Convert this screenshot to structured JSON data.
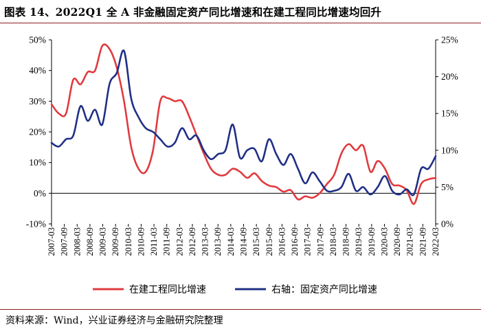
{
  "header": {
    "title": "图表 14、2022Q1 全 A 非金融固定资产同比增速和在建工程同比增速均回升"
  },
  "footer": {
    "source": "资料来源：Wind，兴业证券经济与金融研究院整理"
  },
  "chart_data": {
    "type": "line",
    "title": "图表 14、2022Q1 全 A 非金融固定资产同比增速和在建工程同比增速均回升",
    "left_axis": {
      "ylim": [
        -10,
        50
      ],
      "ticks": [
        "-10%",
        "0%",
        "10%",
        "20%",
        "30%",
        "40%",
        "50%"
      ]
    },
    "right_axis": {
      "ylim": [
        0,
        25
      ],
      "ticks": [
        "0%",
        "5%",
        "10%",
        "15%",
        "20%",
        "25%"
      ]
    },
    "x_tick_labels": [
      "2007-03",
      "2007-09",
      "2008-03",
      "2008-09",
      "2009-03",
      "2009-09",
      "2010-03",
      "2010-09",
      "2011-03",
      "2011-09",
      "2012-03",
      "2012-09",
      "2013-03",
      "2013-09",
      "2014-03",
      "2014-09",
      "2015-03",
      "2015-09",
      "2016-03",
      "2016-09",
      "2017-03",
      "2017-09",
      "2018-03",
      "2018-09",
      "2019-03",
      "2019-09",
      "2020-03",
      "2020-09",
      "2021-03",
      "2021-09",
      "2022-03"
    ],
    "grid": false,
    "legend_position": "bottom",
    "series": [
      {
        "name": "在建工程同比增速",
        "axis": "left",
        "color": "#e03a3e",
        "values": [
          29,
          26,
          26,
          37,
          35.5,
          39.5,
          40,
          48,
          47,
          41,
          30,
          15,
          8,
          7,
          14,
          30,
          31,
          30,
          30,
          25,
          19,
          13,
          8,
          6,
          6,
          8,
          7,
          5,
          6.5,
          4,
          2.5,
          2,
          0.5,
          1,
          -2,
          -1,
          -1.5,
          0,
          3,
          6,
          13,
          16,
          14,
          15.5,
          7,
          10.5,
          8,
          3,
          2.5,
          1,
          -3.5,
          3,
          4.5,
          5
        ]
      },
      {
        "name": "右轴：固定资产同比增速",
        "axis": "right",
        "color": "#1f2f86",
        "values": [
          11,
          10.5,
          11.5,
          12,
          16,
          14,
          15.5,
          13.5,
          19,
          20.5,
          23.5,
          17,
          14.5,
          13,
          12.5,
          11.5,
          10.5,
          11,
          13,
          11.5,
          12,
          10,
          8.8,
          9.5,
          10,
          13.5,
          9,
          10,
          10.2,
          8.5,
          11.5,
          9.5,
          8,
          9.5,
          7.5,
          5.5,
          7,
          5.8,
          4.5,
          4.5,
          5,
          6.8,
          4.5,
          5,
          4,
          5,
          6.5,
          4.5,
          4,
          4.7,
          4,
          7.5,
          7.5,
          9.2
        ]
      }
    ]
  }
}
